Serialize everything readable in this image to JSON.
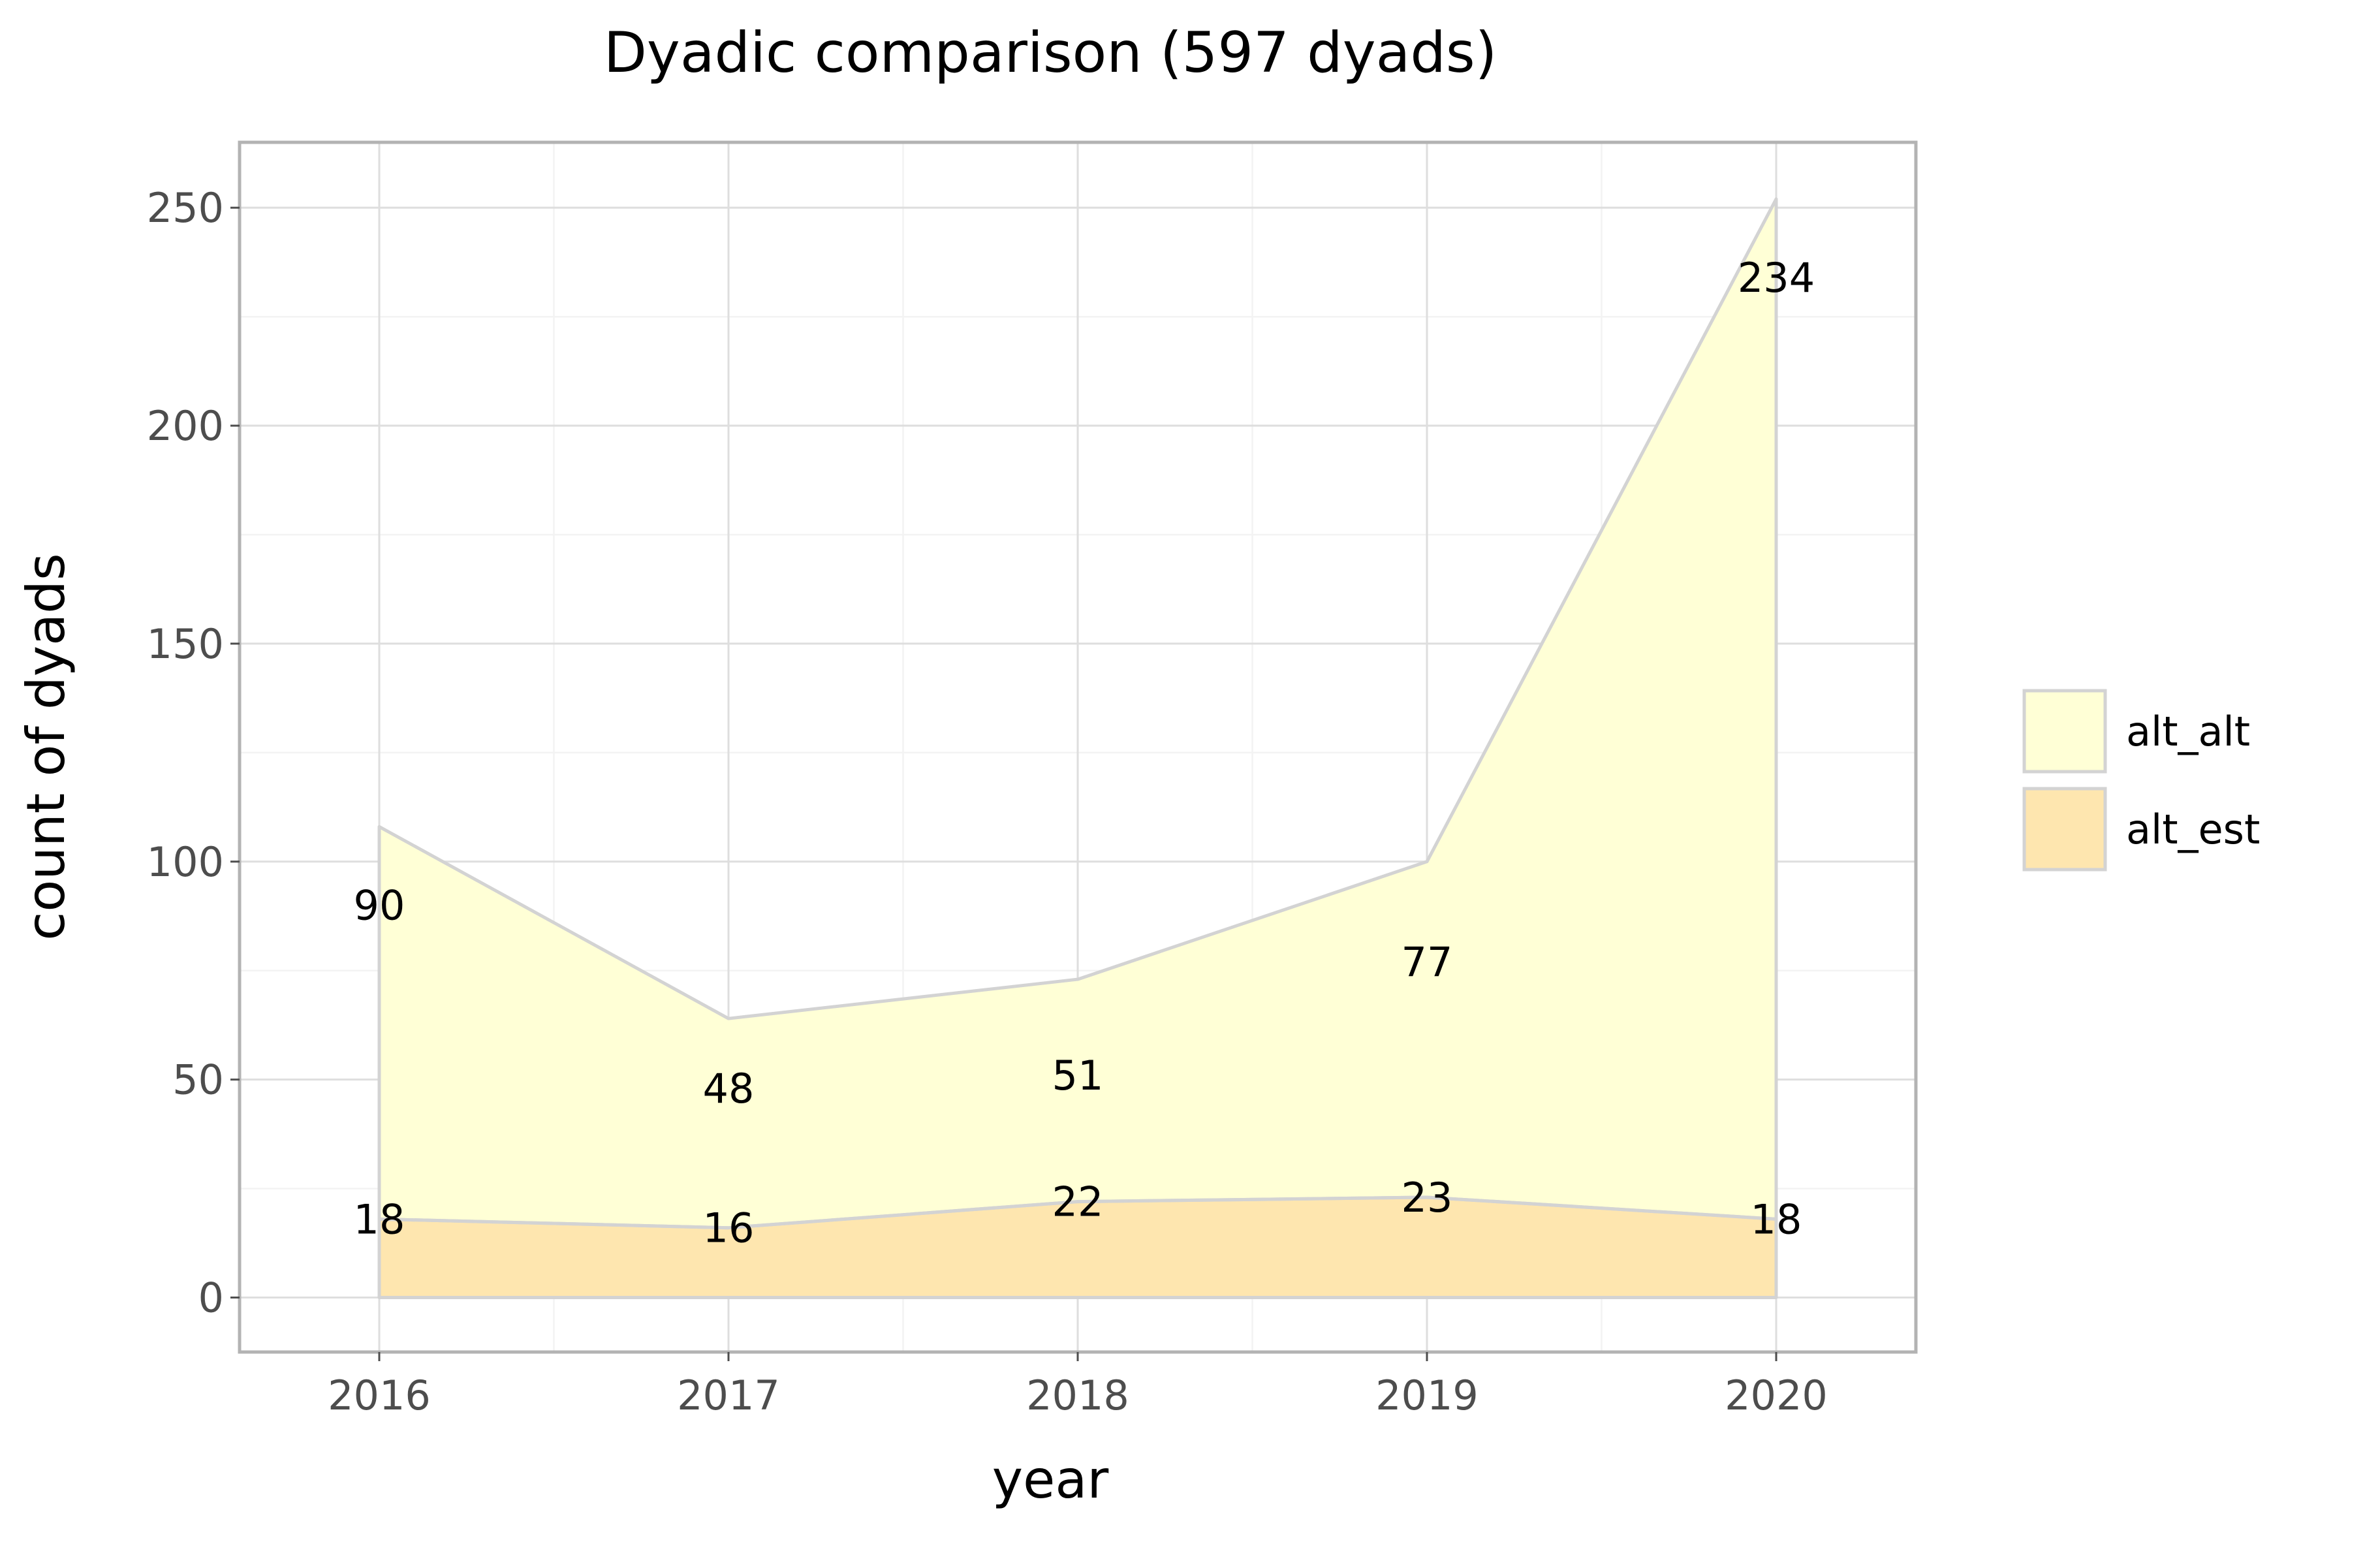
{
  "chart_data": {
    "type": "area",
    "stacked": true,
    "title": "Dyadic comparison (597 dyads)",
    "xlabel": "year",
    "ylabel": "count of dyads",
    "x": [
      2016,
      2017,
      2018,
      2019,
      2020
    ],
    "x_tick_labels": [
      "2016",
      "2017",
      "2018",
      "2019",
      "2020"
    ],
    "xlim": [
      2015.6,
      2020.4
    ],
    "ylim": [
      -12.5,
      265
    ],
    "y_ticks": [
      0,
      50,
      100,
      150,
      200,
      250
    ],
    "y_tick_labels": [
      "0",
      "50",
      "100",
      "150",
      "200",
      "250"
    ],
    "grid": true,
    "legend": "right",
    "series": [
      {
        "name": "alt_est",
        "values": [
          18,
          16,
          22,
          23,
          18
        ],
        "labels": [
          "18",
          "16",
          "22",
          "23",
          "18"
        ],
        "color": "#FEE6AF"
      },
      {
        "name": "alt_alt",
        "values": [
          90,
          48,
          51,
          77,
          234
        ],
        "labels": [
          "90",
          "48",
          "51",
          "77",
          "234"
        ],
        "color": "#FFFFD6"
      }
    ],
    "colors": {
      "outline": "#D3D3D3",
      "panel_border": "#B3B3B3",
      "grid_major": "#DEDEDE",
      "grid_minor": "#F3F3F3",
      "tick_text": "#4D4D4D",
      "text": "#000000"
    }
  }
}
